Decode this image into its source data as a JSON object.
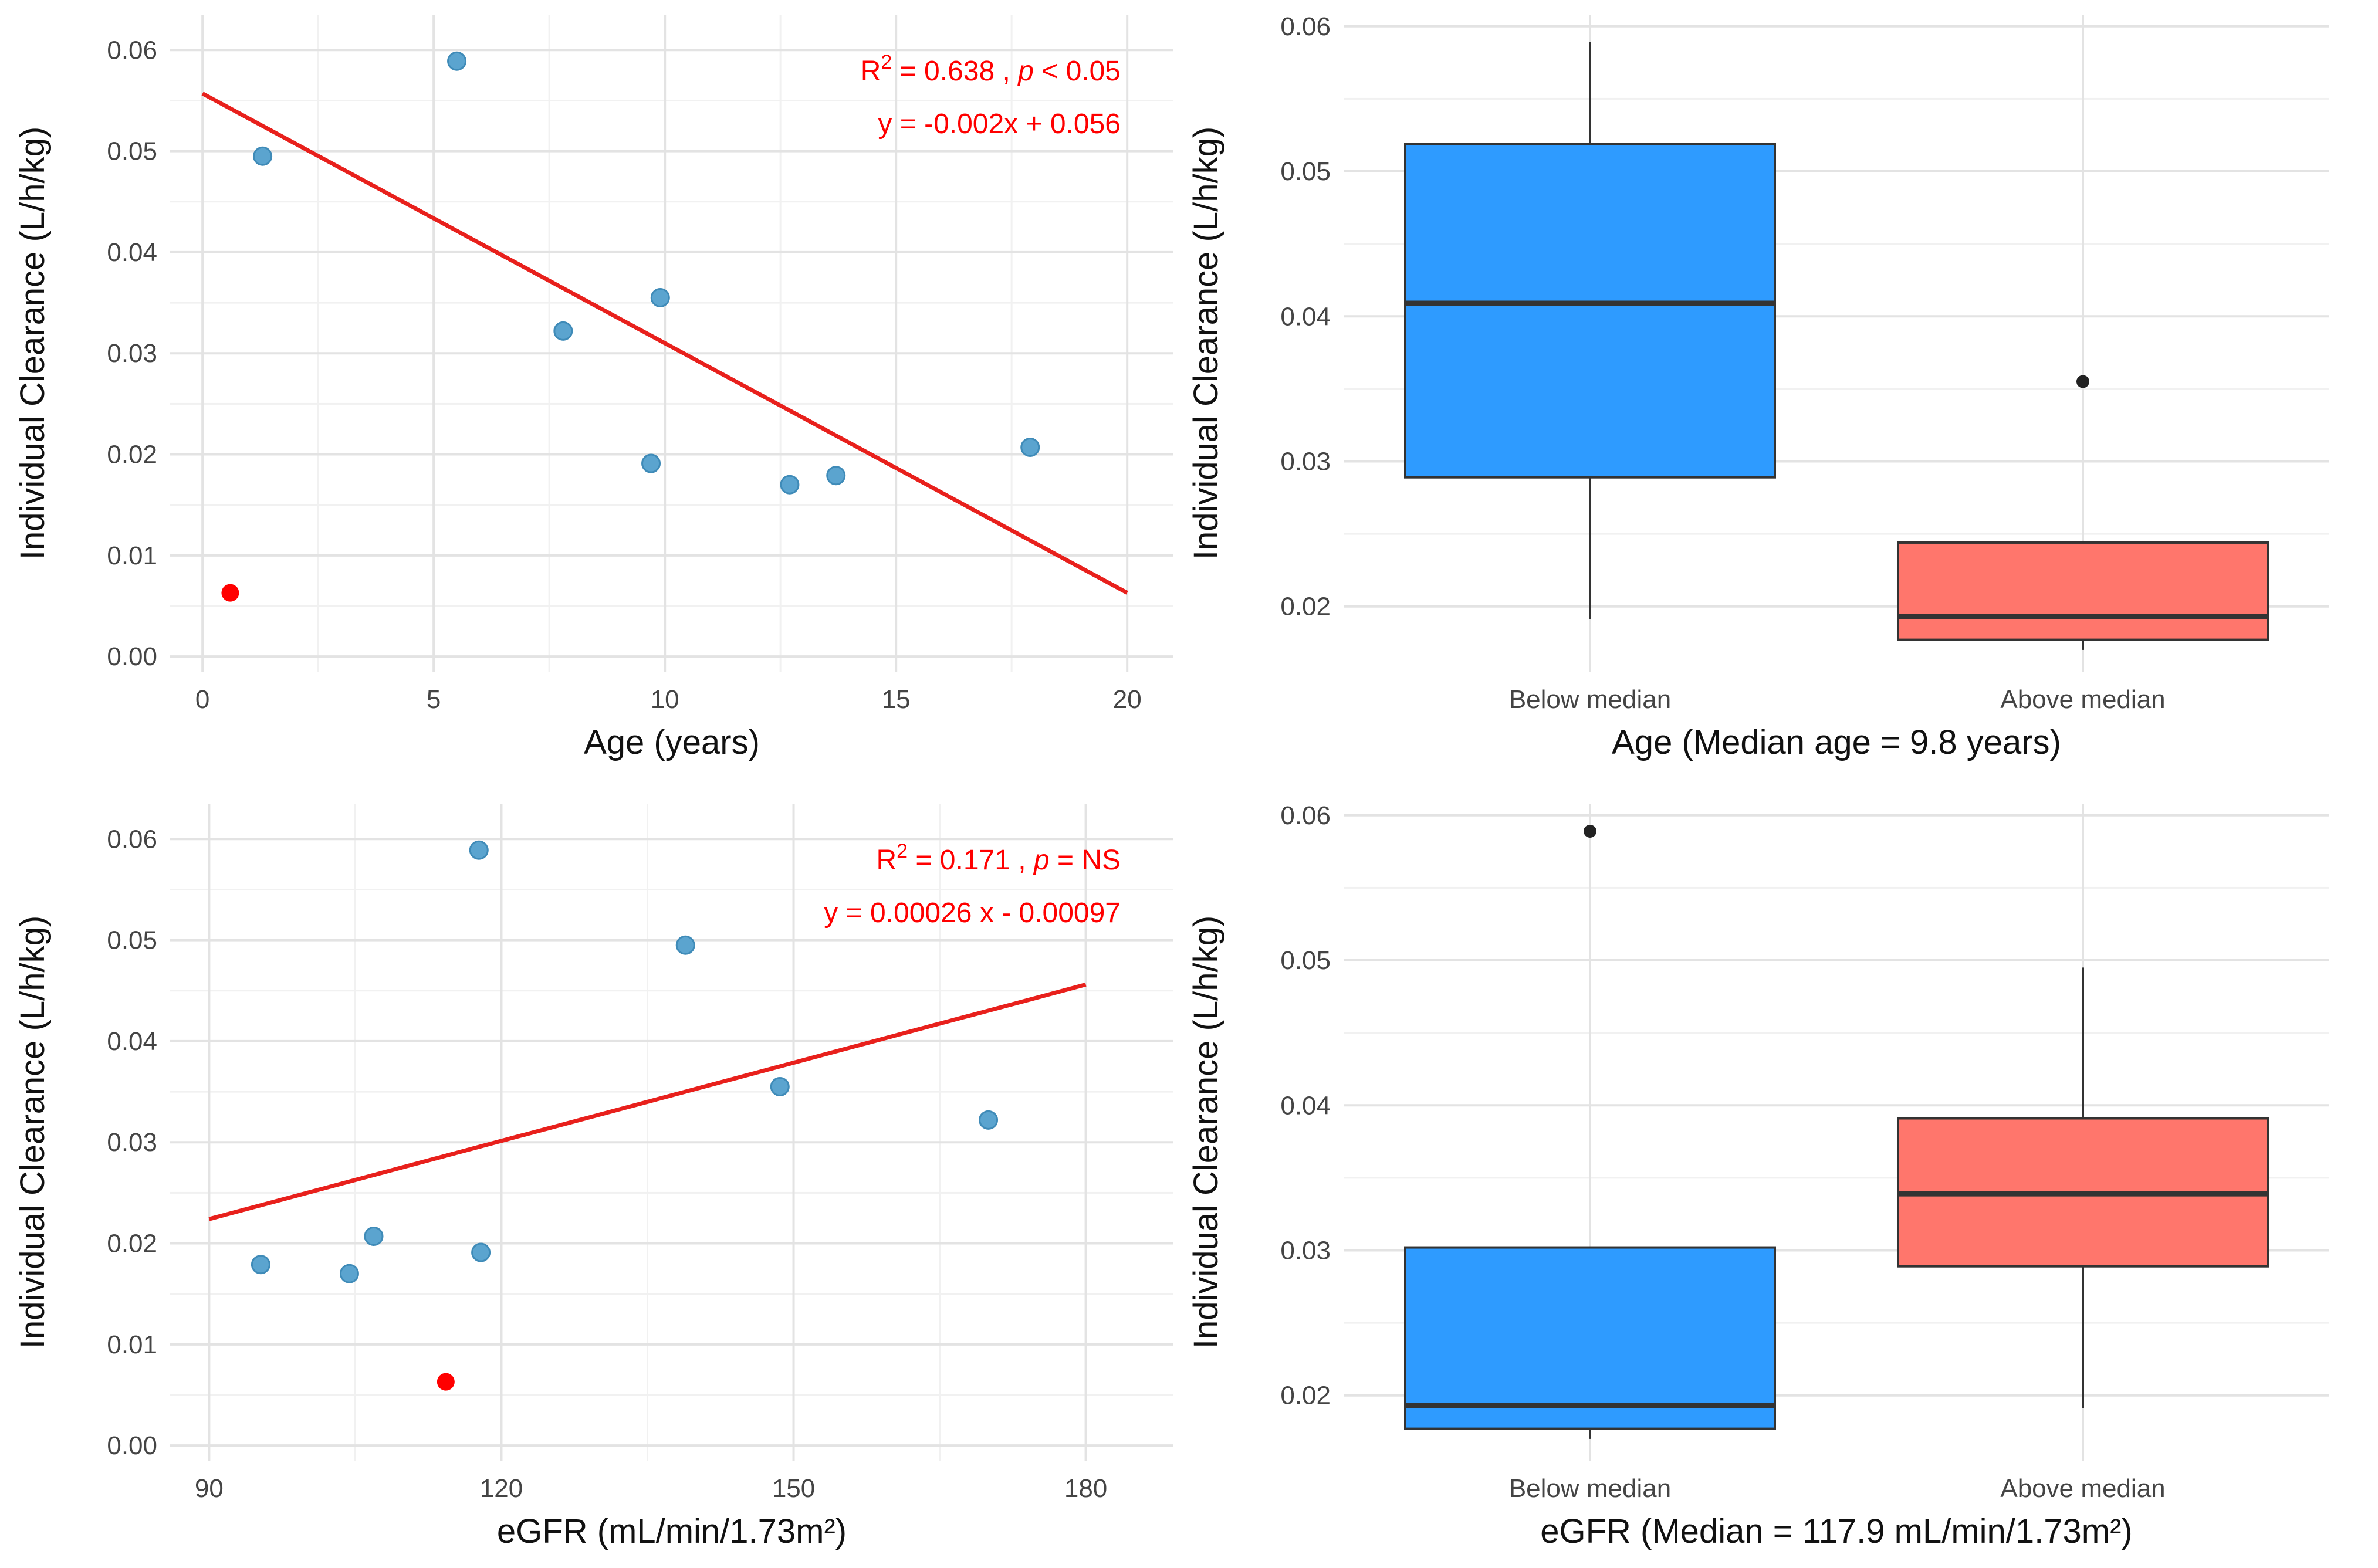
{
  "chart_data": [
    {
      "type": "scatter",
      "panel": "top-left",
      "xlabel": "Age (years)",
      "ylabel": "Individual Clearance (L/h/kg)",
      "xlim": [
        -0.7,
        21
      ],
      "ylim": [
        -0.0015,
        0.0635
      ],
      "xticks": [
        0,
        5,
        10,
        15,
        20
      ],
      "xtick_labels": [
        "0",
        "5",
        "10",
        "15",
        "20"
      ],
      "yticks": [
        0,
        0.01,
        0.02,
        0.03,
        0.04,
        0.05,
        0.06
      ],
      "ytick_labels": [
        "0.00",
        "0.01",
        "0.02",
        "0.03",
        "0.04",
        "0.05",
        "0.06"
      ],
      "points": [
        {
          "x": 1.3,
          "y": 0.0495
        },
        {
          "x": 5.5,
          "y": 0.0589
        },
        {
          "x": 7.8,
          "y": 0.0322
        },
        {
          "x": 9.7,
          "y": 0.0191
        },
        {
          "x": 9.9,
          "y": 0.0355
        },
        {
          "x": 12.7,
          "y": 0.017
        },
        {
          "x": 13.7,
          "y": 0.0179
        },
        {
          "x": 17.9,
          "y": 0.0207
        }
      ],
      "outlier_points": [
        {
          "x": 0.6,
          "y": 0.0063
        }
      ],
      "regression": {
        "x": [
          0,
          20
        ],
        "y": [
          0.0557,
          0.0063
        ]
      },
      "stats_line1_prefix": "R",
      "stats_line1_sup": "2",
      "stats_line1_value": " = 0.638 , ",
      "stats_line1_p": "p",
      "stats_line1_rest": " < 0.05",
      "stats_line2": "y = -0.002x + 0.056",
      "colors": {
        "point": "#5BA4CF",
        "point_edge": "#3F8BB8",
        "outlier": "#FF0000",
        "line": "#E8201C",
        "annotation": "#FF0000"
      }
    },
    {
      "type": "box",
      "panel": "top-right",
      "xlabel": "Age (Median age = 9.8 years)",
      "ylabel": "Individual Clearance (L/h/kg)",
      "ylim": [
        0.0155,
        0.0608
      ],
      "yticks": [
        0.02,
        0.03,
        0.04,
        0.05,
        0.06
      ],
      "ytick_labels": [
        "0.02",
        "0.03",
        "0.04",
        "0.05",
        "0.06"
      ],
      "categories": [
        "Below  median",
        "Above median"
      ],
      "boxes": [
        {
          "name": "Below median",
          "min": 0.0191,
          "q1": 0.0289,
          "median": 0.0409,
          "q3": 0.0519,
          "max": 0.0589,
          "outliers": [],
          "color": "#2E9BFF"
        },
        {
          "name": "Above median",
          "min": 0.017,
          "q1": 0.0177,
          "median": 0.0193,
          "q3": 0.0244,
          "max": 0.0244,
          "outliers": [
            0.0355
          ],
          "color": "#FF766C"
        }
      ]
    },
    {
      "type": "scatter",
      "panel": "bottom-left",
      "xlabel": "eGFR (mL/min/1.73m²)",
      "ylabel": "Individual Clearance (L/h/kg)",
      "xlim": [
        86,
        189
      ],
      "ylim": [
        -0.0015,
        0.0635
      ],
      "xticks": [
        90,
        120,
        150,
        180
      ],
      "xtick_labels": [
        "90",
        "120",
        "150",
        "180"
      ],
      "yticks": [
        0,
        0.01,
        0.02,
        0.03,
        0.04,
        0.05,
        0.06
      ],
      "ytick_labels": [
        "0.00",
        "0.01",
        "0.02",
        "0.03",
        "0.04",
        "0.05",
        "0.06"
      ],
      "points": [
        {
          "x": 95.3,
          "y": 0.0179
        },
        {
          "x": 104.4,
          "y": 0.017
        },
        {
          "x": 106.9,
          "y": 0.0207
        },
        {
          "x": 117.7,
          "y": 0.0589
        },
        {
          "x": 117.9,
          "y": 0.0191
        },
        {
          "x": 138.9,
          "y": 0.0495
        },
        {
          "x": 148.6,
          "y": 0.0355
        },
        {
          "x": 170.0,
          "y": 0.0322
        }
      ],
      "outlier_points": [
        {
          "x": 114.3,
          "y": 0.0063
        }
      ],
      "regression": {
        "x": [
          90,
          180
        ],
        "y": [
          0.0224,
          0.0456
        ]
      },
      "stats_line1_prefix": "R",
      "stats_line1_sup": "2",
      "stats_line1_value": " = 0.171 , ",
      "stats_line1_p": "p",
      "stats_line1_rest": " = NS",
      "stats_line2": "y = 0.00026 x - 0.00097",
      "colors": {
        "point": "#5BA4CF",
        "point_edge": "#3F8BB8",
        "outlier": "#FF0000",
        "line": "#E8201C",
        "annotation": "#FF0000"
      }
    },
    {
      "type": "box",
      "panel": "bottom-right",
      "xlabel": "eGFR (Median = 117.9 mL/min/1.73m²)",
      "ylabel": "Individual Clearance (L/h/kg)",
      "ylim": [
        0.0155,
        0.0608
      ],
      "yticks": [
        0.02,
        0.03,
        0.04,
        0.05,
        0.06
      ],
      "ytick_labels": [
        "0.02",
        "0.03",
        "0.04",
        "0.05",
        "0.06"
      ],
      "categories": [
        "Below  median",
        "Above median"
      ],
      "boxes": [
        {
          "name": "Below median",
          "min": 0.017,
          "q1": 0.0177,
          "median": 0.0193,
          "q3": 0.0302,
          "max": 0.0302,
          "outliers": [
            0.0589
          ],
          "color": "#2E9BFF"
        },
        {
          "name": "Above median",
          "min": 0.0191,
          "q1": 0.0289,
          "median": 0.0339,
          "q3": 0.0391,
          "max": 0.0495,
          "outliers": [],
          "color": "#FF766C"
        }
      ]
    }
  ]
}
